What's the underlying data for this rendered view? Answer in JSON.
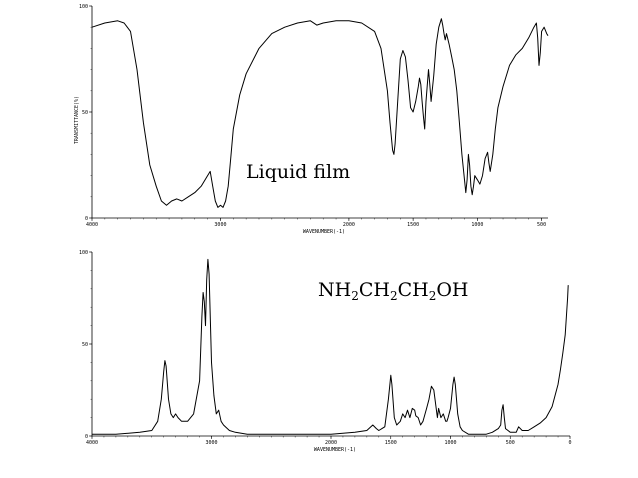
{
  "chart_data": [
    {
      "type": "line",
      "annotation": "Liquid film",
      "xlabel": "WAVENUMBER(-1)",
      "ylabel": "TRANSMITTANCE(%)",
      "xlim": [
        4000,
        450
      ],
      "ylim": [
        0,
        100
      ],
      "x_ticks": [
        "4000",
        "3000",
        "2000",
        "1500",
        "1000",
        "500"
      ],
      "x_tick_values": [
        4000,
        3000,
        2000,
        1500,
        1000,
        500
      ],
      "y_ticks": [
        "0",
        "50",
        "100"
      ],
      "y_tick_values": [
        0,
        50,
        100
      ],
      "series": [
        {
          "points": [
            [
              4000,
              90
            ],
            [
              3900,
              92
            ],
            [
              3800,
              93
            ],
            [
              3750,
              92
            ],
            [
              3700,
              88
            ],
            [
              3650,
              70
            ],
            [
              3600,
              45
            ],
            [
              3550,
              25
            ],
            [
              3500,
              15
            ],
            [
              3460,
              8
            ],
            [
              3420,
              6
            ],
            [
              3380,
              8
            ],
            [
              3340,
              9
            ],
            [
              3300,
              8
            ],
            [
              3250,
              10
            ],
            [
              3200,
              12
            ],
            [
              3150,
              15
            ],
            [
              3100,
              20
            ],
            [
              3080,
              22
            ],
            [
              3060,
              15
            ],
            [
              3040,
              8
            ],
            [
              3020,
              5
            ],
            [
              3000,
              6
            ],
            [
              2980,
              5
            ],
            [
              2960,
              8
            ],
            [
              2940,
              15
            ],
            [
              2920,
              28
            ],
            [
              2900,
              42
            ],
            [
              2850,
              58
            ],
            [
              2800,
              68
            ],
            [
              2700,
              80
            ],
            [
              2600,
              87
            ],
            [
              2500,
              90
            ],
            [
              2400,
              92
            ],
            [
              2300,
              93
            ],
            [
              2250,
              91
            ],
            [
              2200,
              92
            ],
            [
              2100,
              93
            ],
            [
              2000,
              93
            ],
            [
              1900,
              92
            ],
            [
              1800,
              88
            ],
            [
              1750,
              80
            ],
            [
              1700,
              60
            ],
            [
              1680,
              45
            ],
            [
              1660,
              32
            ],
            [
              1650,
              30
            ],
            [
              1640,
              35
            ],
            [
              1620,
              55
            ],
            [
              1600,
              75
            ],
            [
              1580,
              79
            ],
            [
              1560,
              76
            ],
            [
              1540,
              65
            ],
            [
              1520,
              52
            ],
            [
              1500,
              50
            ],
            [
              1480,
              55
            ],
            [
              1460,
              62
            ],
            [
              1450,
              66
            ],
            [
              1440,
              63
            ],
            [
              1430,
              55
            ],
            [
              1420,
              48
            ],
            [
              1410,
              42
            ],
            [
              1400,
              55
            ],
            [
              1380,
              70
            ],
            [
              1370,
              63
            ],
            [
              1360,
              55
            ],
            [
              1340,
              67
            ],
            [
              1320,
              82
            ],
            [
              1300,
              90
            ],
            [
              1280,
              94
            ],
            [
              1270,
              91
            ],
            [
              1260,
              87
            ],
            [
              1250,
              84
            ],
            [
              1240,
              87
            ],
            [
              1220,
              82
            ],
            [
              1200,
              76
            ],
            [
              1180,
              70
            ],
            [
              1160,
              60
            ],
            [
              1140,
              45
            ],
            [
              1120,
              30
            ],
            [
              1100,
              18
            ],
            [
              1090,
              12
            ],
            [
              1080,
              18
            ],
            [
              1070,
              30
            ],
            [
              1060,
              25
            ],
            [
              1050,
              15
            ],
            [
              1040,
              11
            ],
            [
              1030,
              15
            ],
            [
              1020,
              20
            ],
            [
              1000,
              18
            ],
            [
              980,
              16
            ],
            [
              960,
              20
            ],
            [
              940,
              28
            ],
            [
              920,
              31
            ],
            [
              910,
              26
            ],
            [
              900,
              22
            ],
            [
              880,
              30
            ],
            [
              860,
              42
            ],
            [
              840,
              52
            ],
            [
              800,
              62
            ],
            [
              750,
              72
            ],
            [
              700,
              77
            ],
            [
              650,
              80
            ],
            [
              600,
              85
            ],
            [
              560,
              90
            ],
            [
              540,
              92
            ],
            [
              530,
              85
            ],
            [
              520,
              72
            ],
            [
              510,
              78
            ],
            [
              500,
              88
            ],
            [
              480,
              90
            ],
            [
              460,
              87
            ],
            [
              450,
              86
            ]
          ]
        }
      ]
    },
    {
      "type": "line",
      "annotation": "NH2CH2CH2OH",
      "annotation_parts": [
        "NH",
        "2",
        "CH",
        "2",
        "CH",
        "2",
        "OH"
      ],
      "xlabel": "WAVENUMBER(-1)",
      "xlim": [
        4000,
        0
      ],
      "ylim": [
        0,
        100
      ],
      "x_ticks": [
        "4000",
        "3000",
        "2000",
        "1500",
        "1000",
        "500",
        "0"
      ],
      "x_tick_values": [
        4000,
        3000,
        2000,
        1500,
        1000,
        500,
        0
      ],
      "y_ticks": [
        "0",
        "50",
        "100"
      ],
      "y_tick_values": [
        0,
        50,
        100
      ],
      "series": [
        {
          "points": [
            [
              4000,
              1
            ],
            [
              3800,
              1
            ],
            [
              3600,
              2
            ],
            [
              3500,
              3
            ],
            [
              3450,
              8
            ],
            [
              3420,
              20
            ],
            [
              3400,
              35
            ],
            [
              3390,
              41
            ],
            [
              3380,
              38
            ],
            [
              3360,
              20
            ],
            [
              3340,
              12
            ],
            [
              3320,
              10
            ],
            [
              3300,
              12
            ],
            [
              3280,
              10
            ],
            [
              3250,
              8
            ],
            [
              3200,
              8
            ],
            [
              3150,
              12
            ],
            [
              3100,
              30
            ],
            [
              3080,
              65
            ],
            [
              3070,
              78
            ],
            [
              3060,
              73
            ],
            [
              3050,
              60
            ],
            [
              3040,
              85
            ],
            [
              3030,
              96
            ],
            [
              3020,
              88
            ],
            [
              3000,
              40
            ],
            [
              2980,
              22
            ],
            [
              2960,
              12
            ],
            [
              2940,
              14
            ],
            [
              2920,
              8
            ],
            [
              2900,
              6
            ],
            [
              2850,
              3
            ],
            [
              2800,
              2
            ],
            [
              2700,
              1
            ],
            [
              2600,
              1
            ],
            [
              2400,
              1
            ],
            [
              2200,
              1
            ],
            [
              2000,
              1
            ],
            [
              1800,
              2
            ],
            [
              1700,
              3
            ],
            [
              1650,
              6
            ],
            [
              1620,
              4
            ],
            [
              1600,
              3
            ],
            [
              1550,
              5
            ],
            [
              1520,
              20
            ],
            [
              1500,
              33
            ],
            [
              1490,
              28
            ],
            [
              1470,
              10
            ],
            [
              1450,
              6
            ],
            [
              1420,
              8
            ],
            [
              1400,
              12
            ],
            [
              1380,
              10
            ],
            [
              1360,
              14
            ],
            [
              1340,
              10
            ],
            [
              1320,
              15
            ],
            [
              1300,
              14
            ],
            [
              1290,
              11
            ],
            [
              1270,
              10
            ],
            [
              1250,
              6
            ],
            [
              1230,
              8
            ],
            [
              1200,
              15
            ],
            [
              1180,
              20
            ],
            [
              1160,
              27
            ],
            [
              1140,
              25
            ],
            [
              1120,
              15
            ],
            [
              1110,
              10
            ],
            [
              1100,
              15
            ],
            [
              1080,
              10
            ],
            [
              1060,
              12
            ],
            [
              1040,
              8
            ],
            [
              1030,
              8
            ],
            [
              1020,
              10
            ],
            [
              1000,
              15
            ],
            [
              980,
              28
            ],
            [
              970,
              32
            ],
            [
              960,
              28
            ],
            [
              940,
              12
            ],
            [
              920,
              5
            ],
            [
              900,
              3
            ],
            [
              850,
              1
            ],
            [
              800,
              1
            ],
            [
              700,
              1
            ],
            [
              650,
              2
            ],
            [
              600,
              4
            ],
            [
              580,
              6
            ],
            [
              570,
              14
            ],
            [
              560,
              17
            ],
            [
              550,
              10
            ],
            [
              540,
              4
            ],
            [
              500,
              2
            ],
            [
              450,
              2
            ],
            [
              430,
              5
            ],
            [
              400,
              3
            ],
            [
              350,
              3
            ],
            [
              300,
              5
            ],
            [
              250,
              7
            ],
            [
              200,
              10
            ],
            [
              150,
              16
            ],
            [
              100,
              28
            ],
            [
              80,
              36
            ],
            [
              60,
              45
            ],
            [
              40,
              55
            ],
            [
              30,
              65
            ],
            [
              20,
              75
            ],
            [
              15,
              82
            ]
          ]
        }
      ]
    }
  ]
}
